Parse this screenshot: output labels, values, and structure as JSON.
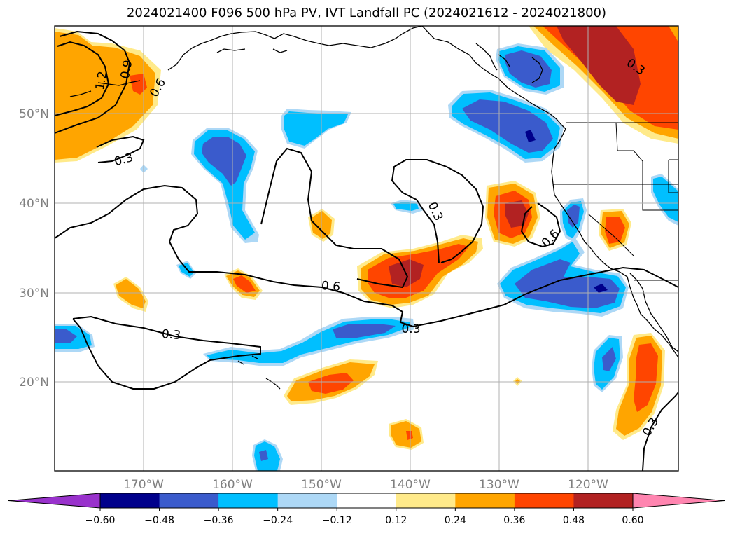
{
  "title": "2024021400 F096 500 hPa PV, IVT Landfall PC (2024021612 - 2024021800)",
  "map": {
    "lat_labels": [
      "50°N",
      "40°N",
      "30°N",
      "20°N"
    ],
    "lon_labels": [
      "170°W",
      "160°W",
      "150°W",
      "140°W",
      "130°W",
      "120°W"
    ],
    "gridlines": true,
    "contour_labels": [
      "0.9",
      "1.2",
      "0.6",
      "0.3",
      "0.3",
      "0.6",
      "0.3",
      "0.6",
      "0.3",
      "0.3",
      "0.3"
    ]
  },
  "colorbar": {
    "ticks": [
      "−0.60",
      "−0.48",
      "−0.36",
      "−0.24",
      "−0.12",
      "0.12",
      "0.24",
      "0.36",
      "0.48",
      "0.60"
    ],
    "colors": [
      "#9932cc",
      "#00008b",
      "#3a5bcc",
      "#00bfff",
      "#add8f6",
      "#ffffff",
      "#ffea8a",
      "#ffa500",
      "#ff4500",
      "#b22222",
      "#ff85b0"
    ],
    "extend": "both"
  }
}
